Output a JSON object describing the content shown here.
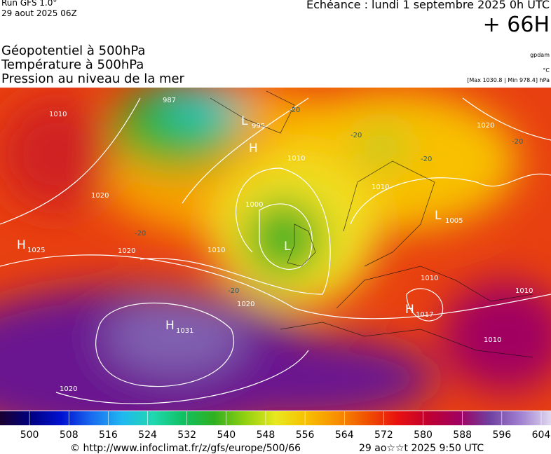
{
  "header": {
    "run": "Run GFS 1.0°",
    "run_date": "29 aout 2025 06Z",
    "valid": "Echéance : lundi 1 septembre 2025 0h UTC",
    "lead": "+ 66H",
    "fields": [
      "Géopotentiel à 500hPa",
      "Température à 500hPa",
      "Pression au niveau de la mer"
    ],
    "units": [
      "gpdam",
      "°C",
      "[Max 1030.8 | Min 978.4] hPa"
    ]
  },
  "map": {
    "pressure_centers": [
      {
        "type": "H",
        "value": "1025"
      },
      {
        "type": "L",
        "value": "995"
      },
      {
        "type": "H",
        "value": ""
      },
      {
        "type": "L",
        "value": ""
      },
      {
        "type": "L",
        "value": "1005"
      },
      {
        "type": "H",
        "value": "1031"
      },
      {
        "type": "H",
        "value": "1017"
      }
    ],
    "contour_labels": [
      "1010",
      "987",
      "1020",
      "1020",
      "1010",
      "1000",
      "1010",
      "1020",
      "1020",
      "1010",
      "1010",
      "1010",
      "1020",
      "1010",
      "-20",
      "-20",
      "-20",
      "-20",
      "-20",
      "-20"
    ]
  },
  "colorbar": {
    "lim": [
      494,
      606
    ],
    "ticks": [
      500,
      508,
      516,
      524,
      532,
      540,
      548,
      556,
      564,
      572,
      580,
      588,
      596,
      604
    ],
    "colors": [
      "#1a0030",
      "#000080",
      "#0010d0",
      "#1a6cf0",
      "#20b8f0",
      "#20d8b0",
      "#10c060",
      "#30b020",
      "#90d010",
      "#e8e820",
      "#f8c000",
      "#f89000",
      "#f05000",
      "#e81010",
      "#c00030",
      "#a00060",
      "#7040a0",
      "#a080d0",
      "#e0d8f0"
    ]
  },
  "footer": {
    "url": "© http://www.infoclimat.fr/z/gfs/europe/500/66",
    "stamp": "29 ao☆☆t 2025  9:50 UTC"
  }
}
